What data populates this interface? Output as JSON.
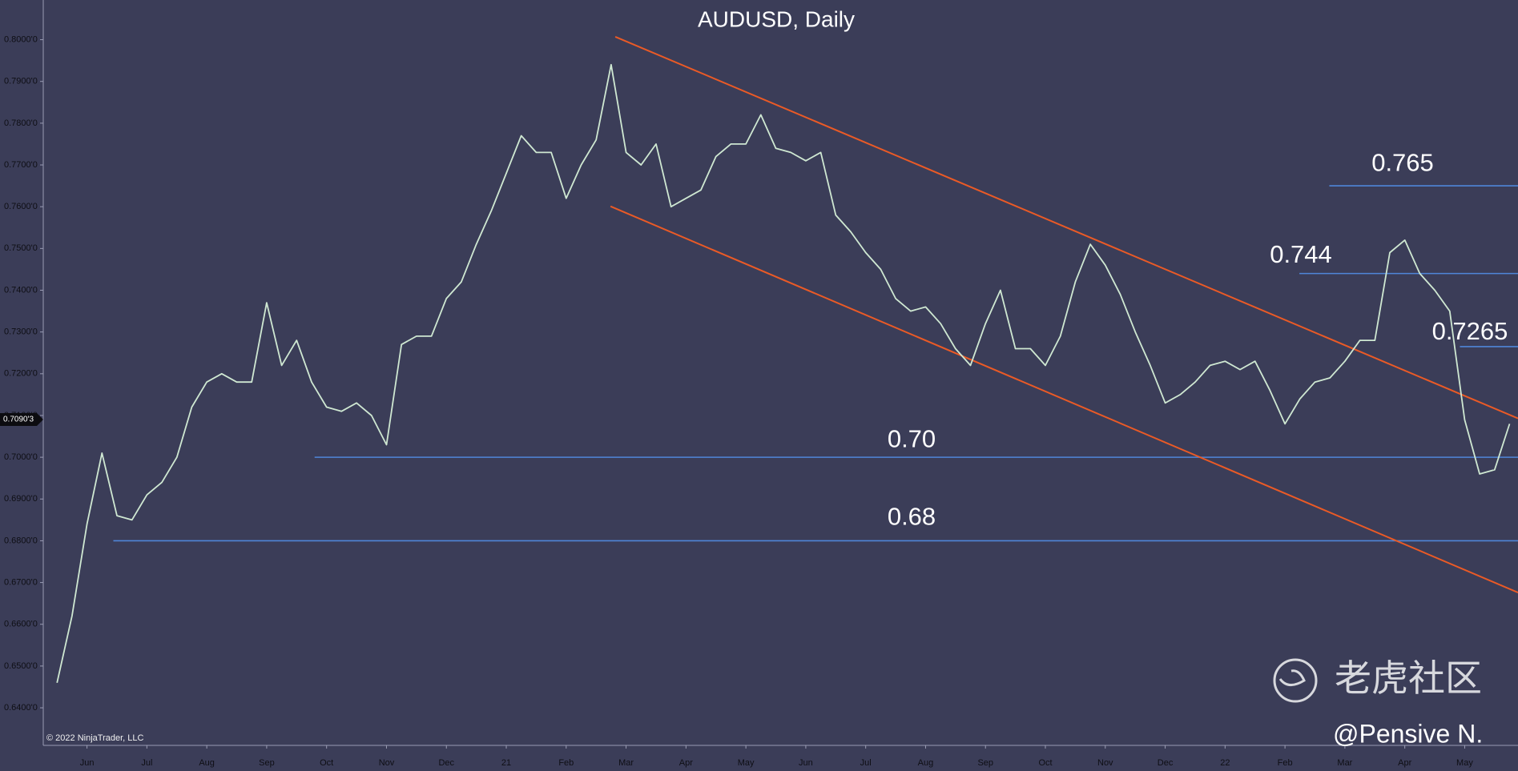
{
  "chart_data": {
    "type": "line",
    "title": "AUDUSD, Daily",
    "x": [
      -0.5,
      -0.25,
      0,
      0.25,
      0.5,
      0.75,
      1,
      1.25,
      1.5,
      1.75,
      2,
      2.25,
      2.5,
      2.75,
      3,
      3.25,
      3.5,
      3.75,
      4,
      4.25,
      4.5,
      4.75,
      5,
      5.25,
      5.5,
      5.75,
      6,
      6.25,
      6.5,
      6.75,
      7,
      7.25,
      7.5,
      7.75,
      8,
      8.25,
      8.5,
      8.75,
      9,
      9.25,
      9.5,
      9.75,
      10,
      10.25,
      10.5,
      10.75,
      11,
      11.25,
      11.5,
      11.75,
      12,
      12.25,
      12.5,
      12.75,
      13,
      13.25,
      13.5,
      13.75,
      14,
      14.25,
      14.5,
      14.75,
      15,
      15.25,
      15.5,
      15.75,
      16,
      16.25,
      16.5,
      16.75,
      17,
      17.25,
      17.5,
      17.75,
      18,
      18.25,
      18.5,
      18.75,
      19,
      19.25,
      19.5,
      19.75,
      20,
      20.25,
      20.5,
      20.75,
      21,
      21.25,
      21.5,
      21.75,
      22,
      22.25,
      22.5,
      22.75,
      23,
      23.25,
      23.5,
      23.75
    ],
    "values": [
      0.646,
      0.662,
      0.684,
      0.701,
      0.686,
      0.685,
      0.691,
      0.694,
      0.7,
      0.712,
      0.718,
      0.72,
      0.718,
      0.718,
      0.737,
      0.722,
      0.728,
      0.718,
      0.712,
      0.711,
      0.713,
      0.71,
      0.703,
      0.727,
      0.729,
      0.729,
      0.738,
      0.742,
      0.751,
      0.759,
      0.768,
      0.777,
      0.773,
      0.773,
      0.762,
      0.77,
      0.776,
      0.794,
      0.773,
      0.77,
      0.775,
      0.76,
      0.762,
      0.764,
      0.772,
      0.775,
      0.775,
      0.782,
      0.774,
      0.773,
      0.771,
      0.773,
      0.758,
      0.754,
      0.749,
      0.745,
      0.738,
      0.735,
      0.736,
      0.732,
      0.726,
      0.722,
      0.732,
      0.74,
      0.726,
      0.726,
      0.722,
      0.729,
      0.742,
      0.751,
      0.746,
      0.739,
      0.73,
      0.722,
      0.713,
      0.715,
      0.718,
      0.722,
      0.723,
      0.721,
      0.723,
      0.716,
      0.708,
      0.714,
      0.718,
      0.719,
      0.723,
      0.728,
      0.728,
      0.749,
      0.752,
      0.744,
      0.74,
      0.735,
      0.709,
      0.696,
      0.697,
      0.708
    ],
    "color": "#cfe8d2",
    "xlim": [
      -0.73,
      23.89
    ],
    "ylim": [
      0.631,
      0.8095
    ],
    "xticks": [
      {
        "value": 0,
        "label": "Jun"
      },
      {
        "value": 1,
        "label": "Jul"
      },
      {
        "value": 2,
        "label": "Aug"
      },
      {
        "value": 3,
        "label": "Sep"
      },
      {
        "value": 4,
        "label": "Oct"
      },
      {
        "value": 5,
        "label": "Nov"
      },
      {
        "value": 6,
        "label": "Dec"
      },
      {
        "value": 7,
        "label": "21"
      },
      {
        "value": 8,
        "label": "Feb"
      },
      {
        "value": 9,
        "label": "Mar"
      },
      {
        "value": 10,
        "label": "Apr"
      },
      {
        "value": 11,
        "label": "May"
      },
      {
        "value": 12,
        "label": "Jun"
      },
      {
        "value": 13,
        "label": "Jul"
      },
      {
        "value": 14,
        "label": "Aug"
      },
      {
        "value": 15,
        "label": "Sep"
      },
      {
        "value": 16,
        "label": "Oct"
      },
      {
        "value": 17,
        "label": "Nov"
      },
      {
        "value": 18,
        "label": "Dec"
      },
      {
        "value": 19,
        "label": "22"
      },
      {
        "value": 20,
        "label": "Feb"
      },
      {
        "value": 21,
        "label": "Mar"
      },
      {
        "value": 22,
        "label": "Apr"
      },
      {
        "value": 23,
        "label": "May"
      }
    ],
    "yticks": [
      {
        "value": 0.64,
        "label": "0.6400'0"
      },
      {
        "value": 0.65,
        "label": "0.6500'0"
      },
      {
        "value": 0.66,
        "label": "0.6600'0"
      },
      {
        "value": 0.67,
        "label": "0.6700'0"
      },
      {
        "value": 0.68,
        "label": "0.6800'0"
      },
      {
        "value": 0.69,
        "label": "0.6900'0"
      },
      {
        "value": 0.7,
        "label": "0.7000'0"
      },
      {
        "value": 0.71,
        "label": "0.7100'0"
      },
      {
        "value": 0.72,
        "label": "0.7200'0"
      },
      {
        "value": 0.73,
        "label": "0.7300'0"
      },
      {
        "value": 0.74,
        "label": "0.7400'0"
      },
      {
        "value": 0.75,
        "label": "0.7500'0"
      },
      {
        "value": 0.76,
        "label": "0.7600'0"
      },
      {
        "value": 0.77,
        "label": "0.7700'0"
      },
      {
        "value": 0.78,
        "label": "0.7800'0"
      },
      {
        "value": 0.79,
        "label": "0.7900'0"
      },
      {
        "value": 0.8,
        "label": "0.8000'0"
      }
    ],
    "last_price": {
      "value": 0.70903,
      "label": "0.7090'3"
    },
    "levels": [
      {
        "value": 0.7,
        "label": "0.70",
        "x_start": 3.8
      },
      {
        "value": 0.68,
        "label": "0.68",
        "x_start": 0.44
      },
      {
        "value": 0.744,
        "label": "0.744",
        "x_start": 20.24
      },
      {
        "value": 0.765,
        "label": "0.765",
        "x_start": 20.74
      },
      {
        "value": 0.7265,
        "label": "0.7265",
        "x_start": 22.92
      }
    ],
    "level_color": "#4f86d8",
    "trendlines": [
      {
        "x": [
          8.82,
          23.89
        ],
        "y": [
          0.8007,
          0.7093
        ]
      },
      {
        "x": [
          8.74,
          23.89
        ],
        "y": [
          0.7601,
          0.6676
        ]
      }
    ],
    "trend_color": "#ea5a26",
    "copyright": "© 2022 NinjaTrader, LLC",
    "watermark": "老虎社区",
    "author": "@Pensive N."
  }
}
